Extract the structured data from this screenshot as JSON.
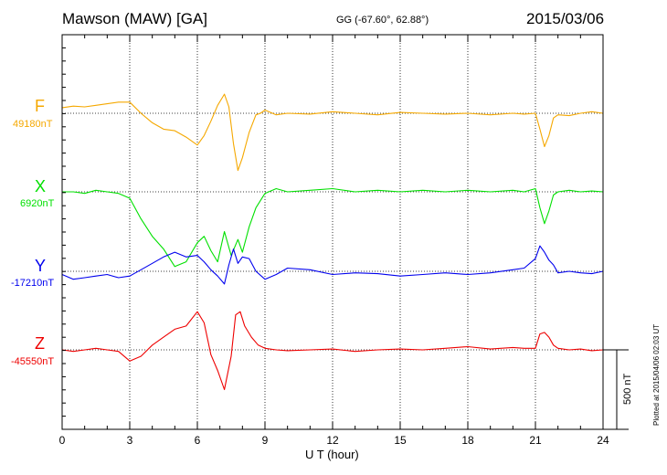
{
  "header": {
    "station": "Mawson (MAW)  [GA]",
    "coords": "GG (-67.60°,  62.88°)",
    "date": "2015/03/06"
  },
  "footer_note": "Plotted at 2015/04/06 02:03 UT",
  "chart_data": {
    "type": "line",
    "title": "Mawson (MAW)  [GA]",
    "xlabel": "U T (hour)",
    "xlim": [
      0,
      24
    ],
    "xticks": [
      0,
      3,
      6,
      9,
      12,
      15,
      18,
      21,
      24
    ],
    "grid": "dotted vertical every 3 hours; dotted baseline per component",
    "scale_bar": "500 nT",
    "series": [
      {
        "name": "F",
        "baseline_label": "49180nT",
        "baseline": 49180,
        "color": "#f5a800",
        "x": [
          0,
          0.5,
          1,
          1.5,
          2,
          2.5,
          3,
          3.5,
          4,
          4.5,
          5,
          5.5,
          6,
          6.3,
          6.6,
          6.9,
          7.2,
          7.4,
          7.6,
          7.8,
          8.0,
          8.3,
          8.6,
          8.8,
          9,
          9.5,
          10,
          11,
          12,
          13,
          14,
          15,
          16,
          17,
          18,
          19,
          20,
          20.5,
          21,
          21.2,
          21.4,
          21.6,
          21.8,
          22,
          22.5,
          23,
          23.5,
          24
        ],
        "y": [
          49215,
          49225,
          49220,
          49230,
          49240,
          49250,
          49250,
          49180,
          49120,
          49080,
          49070,
          49030,
          48980,
          49040,
          49130,
          49230,
          49300,
          49220,
          48990,
          48820,
          48900,
          49060,
          49170,
          49180,
          49200,
          49170,
          49180,
          49175,
          49190,
          49180,
          49170,
          49185,
          49180,
          49175,
          49180,
          49170,
          49180,
          49175,
          49180,
          49080,
          48970,
          49040,
          49150,
          49170,
          49165,
          49180,
          49190,
          49180
        ]
      },
      {
        "name": "X",
        "baseline_label": "6920nT",
        "baseline": 6920,
        "color": "#00e000",
        "x": [
          0,
          0.5,
          1,
          1.5,
          2,
          2.5,
          3,
          3.5,
          4,
          4.5,
          5,
          5.5,
          6,
          6.3,
          6.6,
          6.9,
          7.2,
          7.5,
          7.8,
          8.0,
          8.3,
          8.6,
          9,
          9.5,
          10,
          11,
          12,
          13,
          14,
          15,
          16,
          17,
          18,
          19,
          20,
          20.5,
          21,
          21.2,
          21.4,
          21.6,
          21.8,
          22,
          22.5,
          23,
          23.5,
          24
        ],
        "y": [
          6920,
          6920,
          6910,
          6930,
          6920,
          6910,
          6880,
          6750,
          6640,
          6560,
          6450,
          6480,
          6600,
          6640,
          6550,
          6480,
          6670,
          6520,
          6620,
          6540,
          6700,
          6820,
          6910,
          6940,
          6920,
          6930,
          6940,
          6920,
          6930,
          6920,
          6930,
          6920,
          6930,
          6920,
          6930,
          6920,
          6940,
          6820,
          6720,
          6800,
          6900,
          6920,
          6930,
          6920,
          6925,
          6920
        ]
      },
      {
        "name": "Y",
        "baseline_label": "-17210nT",
        "baseline": -17210,
        "color": "#0000ee",
        "x": [
          0,
          0.5,
          1,
          1.5,
          2,
          2.5,
          3,
          3.5,
          4,
          4.5,
          5,
          5.5,
          6,
          6.3,
          6.6,
          6.9,
          7.2,
          7.4,
          7.6,
          7.8,
          8.0,
          8.3,
          8.6,
          9,
          9.5,
          10,
          11,
          12,
          13,
          14,
          15,
          16,
          17,
          18,
          19,
          20,
          20.5,
          21,
          21.2,
          21.4,
          21.6,
          21.8,
          22,
          22.5,
          23,
          23.5,
          24
        ],
        "y": [
          -17230,
          -17260,
          -17250,
          -17240,
          -17230,
          -17250,
          -17240,
          -17200,
          -17160,
          -17120,
          -17090,
          -17120,
          -17110,
          -17150,
          -17200,
          -17240,
          -17290,
          -17170,
          -17070,
          -17160,
          -17120,
          -17130,
          -17210,
          -17260,
          -17230,
          -17190,
          -17200,
          -17230,
          -17220,
          -17225,
          -17240,
          -17230,
          -17220,
          -17230,
          -17220,
          -17200,
          -17190,
          -17130,
          -17050,
          -17090,
          -17140,
          -17170,
          -17220,
          -17210,
          -17220,
          -17225,
          -17210
        ]
      },
      {
        "name": "Z",
        "baseline_label": "-45550nT",
        "baseline": -45550,
        "color": "#ee0000",
        "x": [
          0,
          0.5,
          1,
          1.5,
          2,
          2.5,
          3,
          3.5,
          4,
          4.5,
          5,
          5.5,
          6,
          6.3,
          6.6,
          6.9,
          7.2,
          7.5,
          7.7,
          7.9,
          8.1,
          8.4,
          8.7,
          9,
          9.5,
          10,
          11,
          12,
          13,
          14,
          15,
          16,
          17,
          18,
          19,
          20,
          20.5,
          21,
          21.2,
          21.4,
          21.6,
          21.8,
          22,
          22.5,
          23,
          23.5,
          24
        ],
        "y": [
          -45550,
          -45560,
          -45550,
          -45540,
          -45550,
          -45560,
          -45620,
          -45590,
          -45520,
          -45470,
          -45420,
          -45400,
          -45310,
          -45380,
          -45580,
          -45680,
          -45800,
          -45590,
          -45330,
          -45310,
          -45400,
          -45470,
          -45520,
          -45540,
          -45550,
          -45555,
          -45550,
          -45545,
          -45560,
          -45550,
          -45545,
          -45550,
          -45540,
          -45530,
          -45545,
          -45535,
          -45540,
          -45540,
          -45450,
          -45440,
          -45470,
          -45520,
          -45540,
          -45550,
          -45545,
          -45555,
          -45550
        ]
      }
    ]
  }
}
